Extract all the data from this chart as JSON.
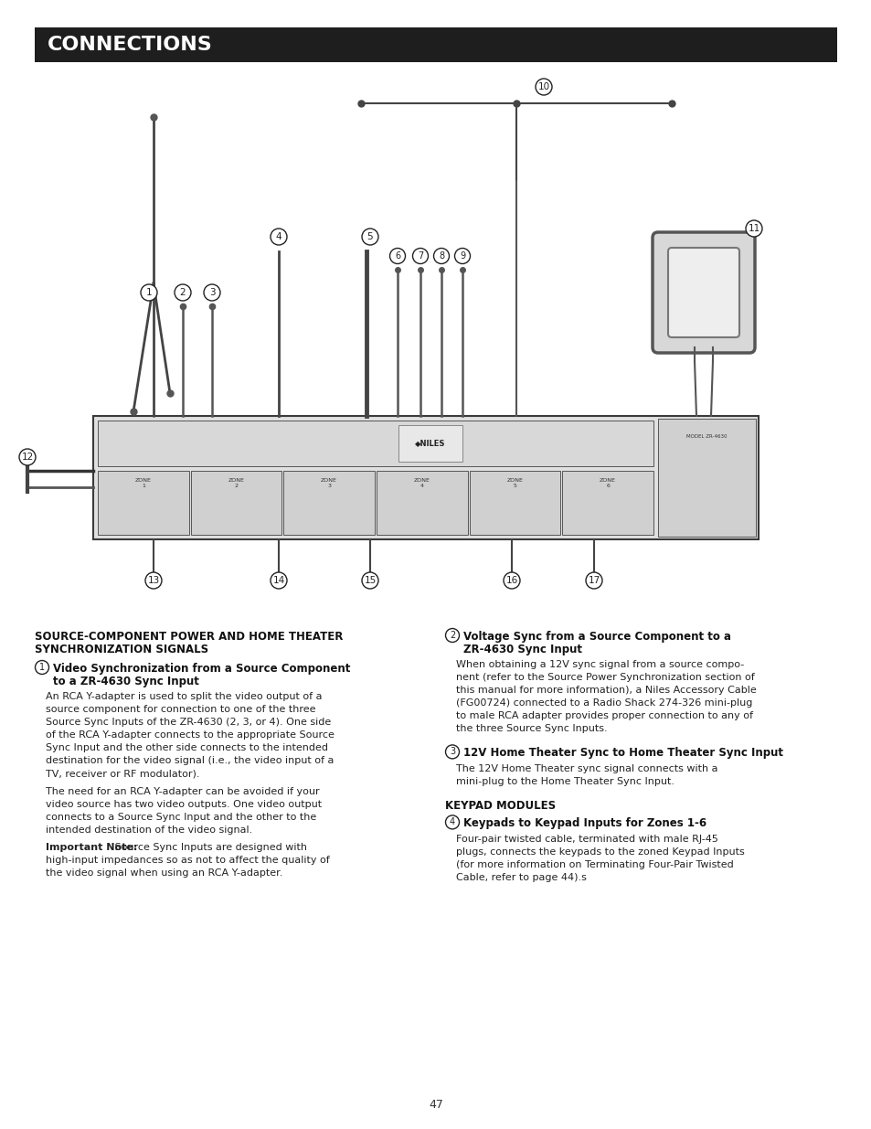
{
  "page_bg": "#ffffff",
  "header_bg": "#1e1e1e",
  "header_text": "CONNECTIONS",
  "header_text_color": "#ffffff",
  "header_font_size": 16,
  "page_number": "47",
  "left_col_heading": "SOURCE-COMPONENT POWER AND HOME THEATER\nSYNCHRONIZATION SIGNALS",
  "item1_heading_circle": "1",
  "item1_heading_bold": "Video Synchronization from a Source Component\nto a ZR-4630 Sync Input",
  "item1_body1": "An RCA Y-adapter is used to split the video output of a source component for connection to one of the three Source Sync Inputs of the ZR-4630 (2, 3, or 4). One side of the RCA Y-adapter connects to the appropriate Source Sync Input and the other side connects to the intended destination for the video signal (i.e., the video input of a TV, receiver or RF modulator).",
  "item1_body2": "The need for an RCA Y-adapter can be avoided if your video source has two video outputs. One video output connects to a Source Sync Input and the other to the intended destination of the video signal.",
  "item1_body3_bold": "Important Note:",
  "item1_body3_rest": " Source Sync Inputs are designed with high-input impedances so as not to affect the quality of the video signal when using an RCA Y-adapter.",
  "item2_heading_circle": "2",
  "item2_heading_bold": "Voltage Sync from a Source Component to a\nZR-4630 Sync Input",
  "item2_body": "When obtaining a 12V sync signal from a source compo-nent (refer to the Source Power Synchronization section of this manual for more information), a Niles Accessory Cable (FG00724) connected to a Radio Shack 274-326 mini-plug to male RCA adapter provides proper connection to any of the three Source Sync Inputs.",
  "item3_heading_circle": "3",
  "item3_heading_bold": "12V Home Theater Sync to Home Theater Sync Input",
  "item3_body": "The 12V Home Theater sync signal connects with a mini-plug to the Home Theater Sync Input.",
  "keypad_heading": "KEYPAD MODULES",
  "item4_heading_circle": "4",
  "item4_heading_bold": "Keypads to Keypad Inputs for Zones 1-6",
  "item4_body": "Four-pair twisted cable, terminated with male RJ-45 plugs, connects the keypads to the zoned Keypad Inputs (for more information on Terminating Four-Pair Twisted Cable, refer to page 44).s"
}
